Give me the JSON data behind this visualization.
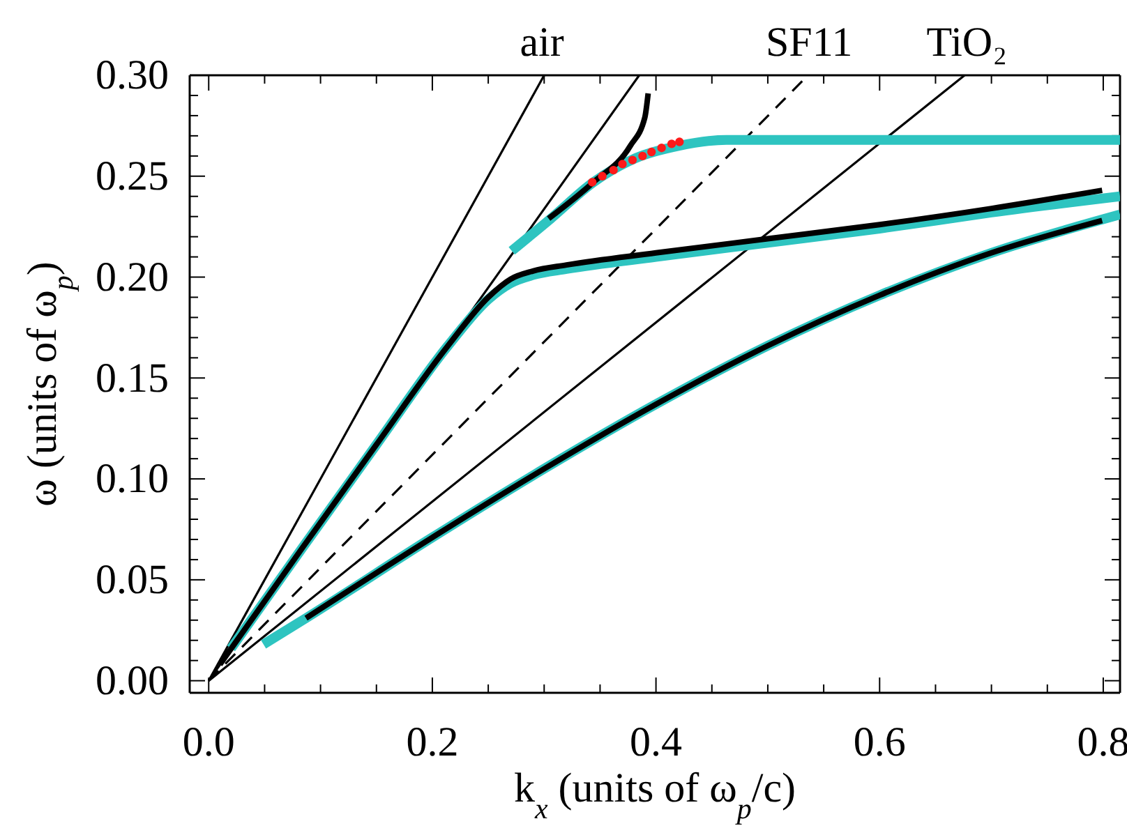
{
  "chart_data": {
    "type": "line",
    "xlabel": "k$_{x}$  (units of ω$_{p}$/c)",
    "ylabel": "ω  (units of ω$_{p}$)",
    "xlim": [
      -0.017,
      0.815
    ],
    "ylim": [
      -0.006,
      0.3
    ],
    "xticks": [
      {
        "value": 0,
        "label": "0.0"
      },
      {
        "value": 0.05,
        "label": null
      },
      {
        "value": 0.1,
        "label": null
      },
      {
        "value": 0.15,
        "label": null
      },
      {
        "value": 0.2,
        "label": "0.2"
      },
      {
        "value": 0.25,
        "label": null
      },
      {
        "value": 0.3,
        "label": null
      },
      {
        "value": 0.35,
        "label": null
      },
      {
        "value": 0.4,
        "label": "0.4"
      },
      {
        "value": 0.45,
        "label": null
      },
      {
        "value": 0.5,
        "label": null
      },
      {
        "value": 0.55,
        "label": null
      },
      {
        "value": 0.6,
        "label": "0.6"
      },
      {
        "value": 0.65,
        "label": null
      },
      {
        "value": 0.7,
        "label": null
      },
      {
        "value": 0.75,
        "label": null
      },
      {
        "value": 0.8,
        "label": "0.8"
      }
    ],
    "yticks": [
      {
        "value": 0,
        "label": "0.00"
      },
      {
        "value": 0.01,
        "label": null
      },
      {
        "value": 0.02,
        "label": null
      },
      {
        "value": 0.03,
        "label": null
      },
      {
        "value": 0.04,
        "label": null
      },
      {
        "value": 0.05,
        "label": "0.05"
      },
      {
        "value": 0.06,
        "label": null
      },
      {
        "value": 0.07,
        "label": null
      },
      {
        "value": 0.08,
        "label": null
      },
      {
        "value": 0.09,
        "label": null
      },
      {
        "value": 0.1,
        "label": "0.10"
      },
      {
        "value": 0.11,
        "label": null
      },
      {
        "value": 0.12,
        "label": null
      },
      {
        "value": 0.13,
        "label": null
      },
      {
        "value": 0.14,
        "label": null
      },
      {
        "value": 0.15,
        "label": "0.15"
      },
      {
        "value": 0.16,
        "label": null
      },
      {
        "value": 0.17,
        "label": null
      },
      {
        "value": 0.18,
        "label": null
      },
      {
        "value": 0.19,
        "label": null
      },
      {
        "value": 0.2,
        "label": "0.20"
      },
      {
        "value": 0.21,
        "label": null
      },
      {
        "value": 0.22,
        "label": null
      },
      {
        "value": 0.23,
        "label": null
      },
      {
        "value": 0.24,
        "label": null
      },
      {
        "value": 0.25,
        "label": "0.25"
      },
      {
        "value": 0.26,
        "label": null
      },
      {
        "value": 0.27,
        "label": null
      },
      {
        "value": 0.28,
        "label": null
      },
      {
        "value": 0.29,
        "label": null
      },
      {
        "value": 0.3,
        "label": "0.30"
      }
    ],
    "grid": false,
    "marker": "none",
    "series": [
      {
        "color": "#000000",
        "x": [
          0,
          0.3
        ],
        "values": [
          0,
          0.3
        ]
      },
      {
        "color": "#000000",
        "x": [
          0,
          0.385
        ],
        "values": [
          0,
          0.3
        ]
      },
      {
        "color": "#000000",
        "x": [
          0,
          0.536
        ],
        "values": [
          0,
          0.3
        ],
        "line_style": "dashed"
      },
      {
        "color": "#000000",
        "x": [
          0,
          0.676
        ],
        "values": [
          0,
          0.3
        ]
      },
      {
        "color": "#2ec4c0",
        "x": [
          0.271,
          0.306,
          0.344,
          0.382,
          0.42,
          0.463,
          0.518,
          0.6,
          0.7,
          0.815
        ],
        "values": [
          0.213,
          0.229,
          0.247,
          0.259,
          0.265,
          0.268,
          0.268,
          0.268,
          0.268,
          0.268
        ]
      },
      {
        "color": "#2ec4c0",
        "x": [
          0.02,
          0.084,
          0.15,
          0.214,
          0.25,
          0.27,
          0.29,
          0.32,
          0.4,
          0.5,
          0.6,
          0.7,
          0.815
        ],
        "values": [
          0.016,
          0.066,
          0.117,
          0.166,
          0.189,
          0.197,
          0.201,
          0.204,
          0.21,
          0.217,
          0.224,
          0.232,
          0.24
        ]
      },
      {
        "color": "#2ec4c0",
        "x": [
          0.049,
          0.087,
          0.2,
          0.3,
          0.4,
          0.5,
          0.6,
          0.7,
          0.815
        ],
        "values": [
          0.018,
          0.031,
          0.071,
          0.105,
          0.137,
          0.166,
          0.191,
          0.212,
          0.231
        ]
      },
      {
        "color": "#000000",
        "x": [
          0.304,
          0.344,
          0.377,
          0.39,
          0.393
        ],
        "values": [
          0.229,
          0.247,
          0.265,
          0.279,
          0.291
        ]
      },
      {
        "color": "#000000",
        "x": [
          0.01,
          0.084,
          0.15,
          0.214,
          0.25,
          0.27,
          0.29,
          0.32,
          0.4,
          0.5,
          0.6,
          0.7,
          0.799
        ],
        "values": [
          0.008,
          0.066,
          0.117,
          0.166,
          0.19,
          0.199,
          0.203,
          0.206,
          0.212,
          0.219,
          0.226,
          0.234,
          0.243
        ]
      },
      {
        "color": "#000000",
        "x": [
          0.087,
          0.2,
          0.3,
          0.4,
          0.5,
          0.6,
          0.7,
          0.799
        ],
        "values": [
          0.031,
          0.071,
          0.105,
          0.137,
          0.166,
          0.191,
          0.212,
          0.228
        ]
      },
      {
        "type": "scatter",
        "marker": "circle",
        "color": "#ff1a1a",
        "x": [
          0.343,
          0.352,
          0.362,
          0.37,
          0.379,
          0.388,
          0.396,
          0.405,
          0.414,
          0.421
        ],
        "values": [
          0.247,
          0.25,
          0.253,
          0.256,
          0.258,
          0.26,
          0.262,
          0.264,
          0.266,
          0.267
        ]
      }
    ],
    "annotations": [
      {
        "text": "air",
        "x": 0.298,
        "y": 0.3
      },
      {
        "text": "SF11",
        "x": 0.537,
        "y": 0.3
      },
      {
        "text": "TiO₂",
        "x": 0.678,
        "y": 0.3
      }
    ]
  }
}
